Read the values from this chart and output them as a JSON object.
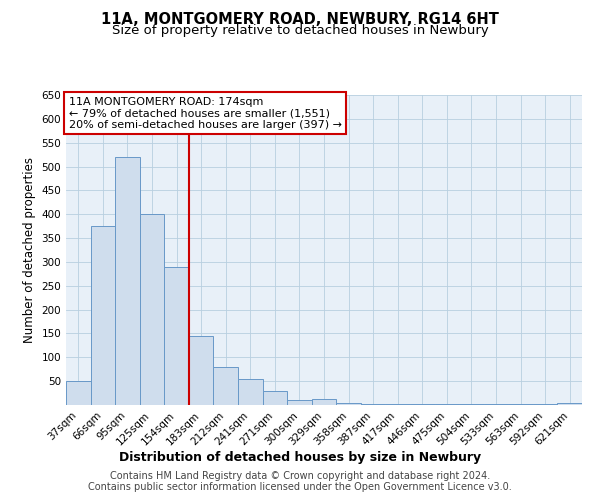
{
  "title": "11A, MONTGOMERY ROAD, NEWBURY, RG14 6HT",
  "subtitle": "Size of property relative to detached houses in Newbury",
  "xlabel": "Distribution of detached houses by size in Newbury",
  "ylabel": "Number of detached properties",
  "categories": [
    "37sqm",
    "66sqm",
    "95sqm",
    "125sqm",
    "154sqm",
    "183sqm",
    "212sqm",
    "241sqm",
    "271sqm",
    "300sqm",
    "329sqm",
    "358sqm",
    "387sqm",
    "417sqm",
    "446sqm",
    "475sqm",
    "504sqm",
    "533sqm",
    "563sqm",
    "592sqm",
    "621sqm"
  ],
  "values": [
    50,
    375,
    520,
    400,
    290,
    145,
    80,
    55,
    30,
    10,
    12,
    5,
    2,
    2,
    2,
    2,
    2,
    2,
    2,
    2,
    5
  ],
  "bar_color": "#cfdded",
  "bar_edge_color": "#6898c8",
  "grid_color": "#b8cfe0",
  "background_color": "#e8f0f8",
  "vline_x": 4.5,
  "vline_color": "#cc0000",
  "annotation_text": "11A MONTGOMERY ROAD: 174sqm\n← 79% of detached houses are smaller (1,551)\n20% of semi-detached houses are larger (397) →",
  "annotation_box_color": "#ffffff",
  "annotation_box_edge": "#cc0000",
  "ylim": [
    0,
    650
  ],
  "yticks": [
    0,
    50,
    100,
    150,
    200,
    250,
    300,
    350,
    400,
    450,
    500,
    550,
    600,
    650
  ],
  "footer_line1": "Contains HM Land Registry data © Crown copyright and database right 2024.",
  "footer_line2": "Contains public sector information licensed under the Open Government Licence v3.0.",
  "title_fontsize": 10.5,
  "subtitle_fontsize": 9.5,
  "xlabel_fontsize": 9,
  "ylabel_fontsize": 8.5,
  "tick_fontsize": 7.5,
  "footer_fontsize": 7,
  "annotation_fontsize": 8
}
